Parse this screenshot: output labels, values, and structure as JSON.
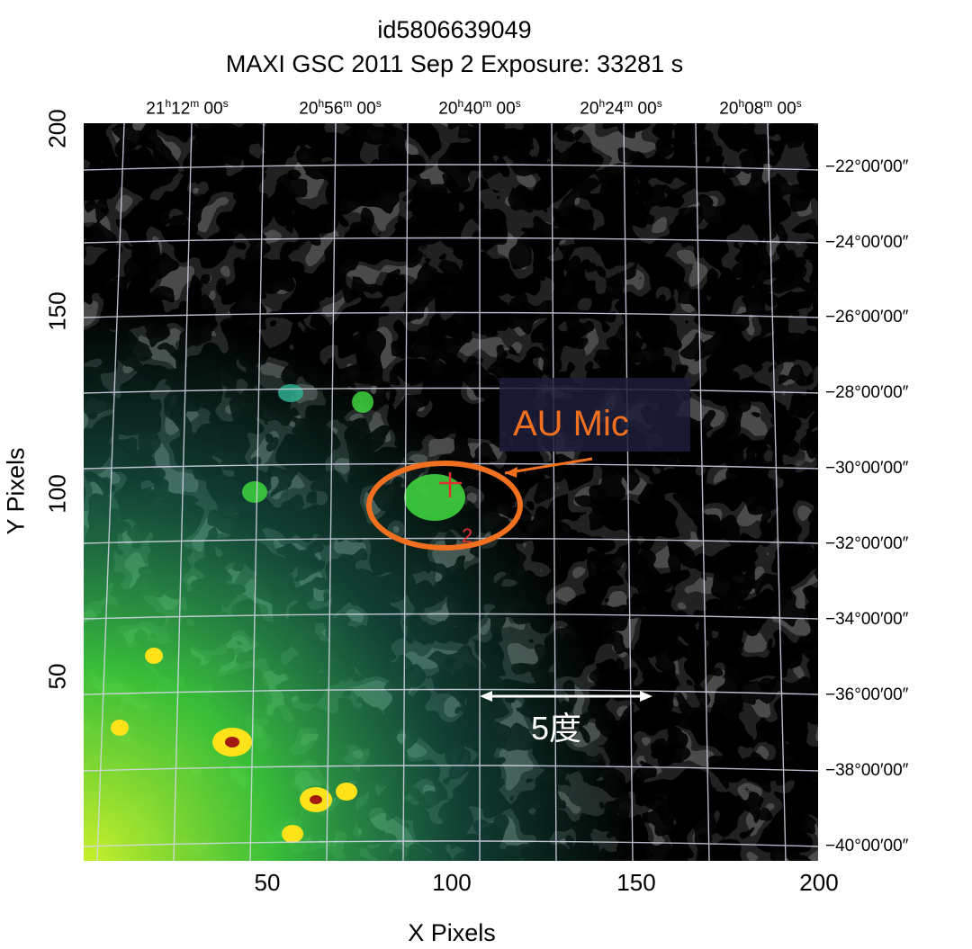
{
  "header": {
    "title": "id5806639049",
    "subtitle": "MAXI GSC   2011 Sep  2    Exposure: 33281 s"
  },
  "axes": {
    "xlabel": "X Pixels",
    "ylabel": "Y Pixels",
    "x_ticks": [
      "50",
      "100",
      "150",
      "200"
    ],
    "y_ticks": [
      "200",
      "150",
      "100",
      "50"
    ],
    "ra_ticks": [
      {
        "h": "21",
        "m": "12",
        "s": "00"
      },
      {
        "h": "20",
        "m": "56",
        "s": "00"
      },
      {
        "h": "20",
        "m": "40",
        "s": "00"
      },
      {
        "h": "20",
        "m": "24",
        "s": "00"
      },
      {
        "h": "20",
        "m": "08",
        "s": "00"
      }
    ],
    "dec_ticks": [
      "−22°00′00″",
      "−24°00′00″",
      "−26°00′00″",
      "−28°00′00″",
      "−30°00′00″",
      "−32°00′00″",
      "−34°00′00″",
      "−36°00′00″",
      "−38°00′00″",
      "−40°00′00″"
    ]
  },
  "annotations": {
    "source_label": "AU Mic",
    "scale_label": "5度",
    "marker_label": "2"
  },
  "colors": {
    "annotation_orange": "#f07020",
    "marker_red": "#e03030",
    "grid": "#d8d8ea",
    "colormap": [
      "#111111",
      "#4a4a4a",
      "#2d1fbf",
      "#5a58ff",
      "#2fae8e",
      "#3ed23e",
      "#c8f02a",
      "#ffe21a",
      "#a31a10"
    ]
  }
}
